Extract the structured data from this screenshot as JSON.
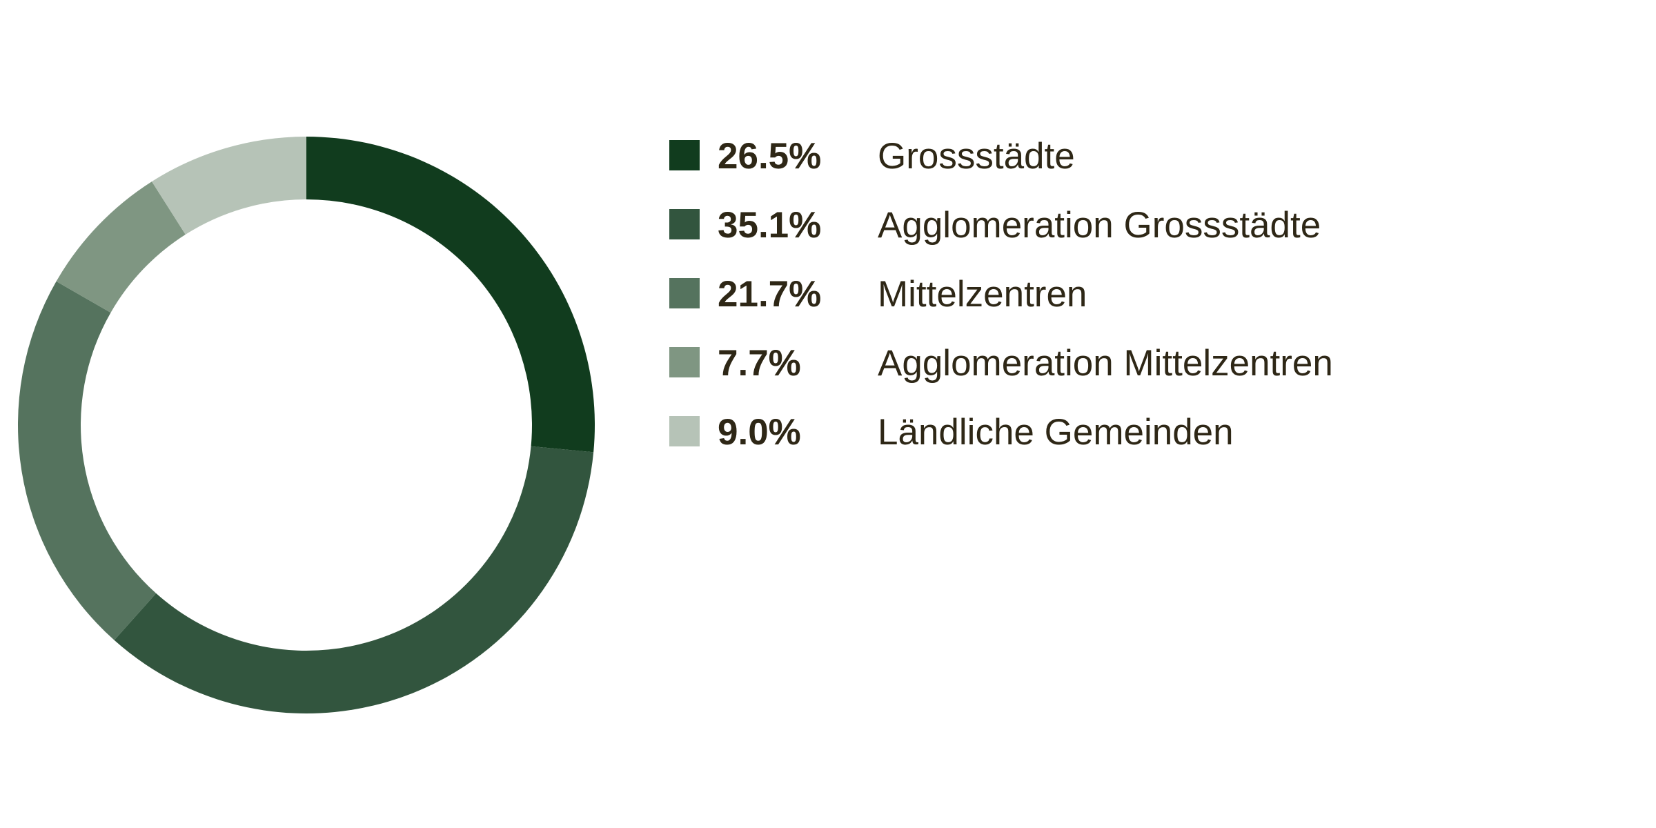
{
  "chart_data": {
    "type": "pie",
    "variant": "donut",
    "start_angle_deg": 0,
    "direction": "clockwise",
    "slices": [
      {
        "label": "Grossstädte",
        "value": 26.5,
        "value_label": "26.5%",
        "color": "#113c1e"
      },
      {
        "label": "Agglomeration Grossstädte",
        "value": 35.1,
        "value_label": "35.1%",
        "color": "#32553e"
      },
      {
        "label": "Mittelzentren",
        "value": 21.7,
        "value_label": "21.7%",
        "color": "#55735e"
      },
      {
        "label": "Agglomeration Mittelzentren",
        "value": 7.7,
        "value_label": "7.7%",
        "color": "#7f9682"
      },
      {
        "label": "Ländliche Gemeinden",
        "value": 9.0,
        "value_label": "9.0%",
        "color": "#b6c3b7"
      }
    ],
    "legend_position": "right",
    "text_color": "#2e2716"
  }
}
